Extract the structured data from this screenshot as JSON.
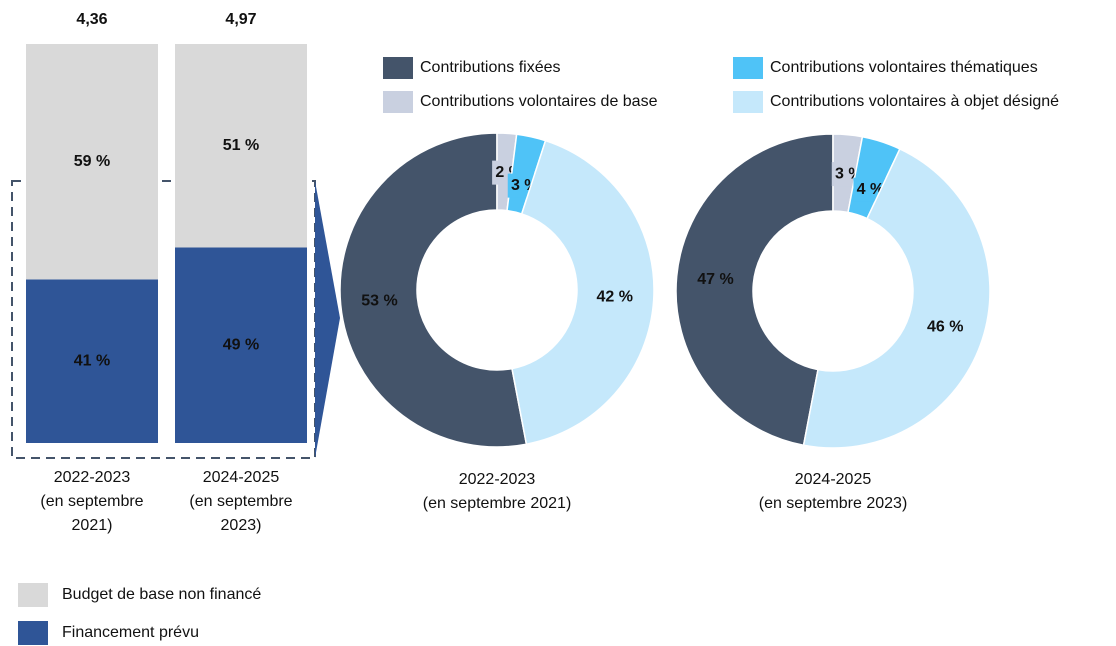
{
  "chart_data": [
    {
      "type": "bar",
      "stacked": true,
      "categories": [
        "2022-2023\n(en septembre\n2021)",
        "2024-2025\n(en septembre\n2023)"
      ],
      "series": [
        {
          "name": "Financement prévu",
          "color": "#2f5597",
          "values": [
            41,
            49
          ],
          "value_labels": [
            "41 %",
            "49 %"
          ]
        },
        {
          "name": "Budget de base non financé",
          "color": "#d9d9d9",
          "values": [
            59,
            51
          ],
          "value_labels": [
            "59 %",
            "51 %"
          ]
        }
      ],
      "totals": [
        {
          "value": 4.36,
          "label": "4,36"
        },
        {
          "value": 4.97,
          "label": "4,97"
        }
      ],
      "ylim": [
        0,
        100
      ]
    },
    {
      "type": "pie",
      "donut": true,
      "subtitle": "2022-2023\n(en septembre 2021)",
      "categories": [
        "Contributions fixées",
        "Contributions volontaires de base",
        "Contributions volontaires thématiques",
        "Contributions volontaires à objet désigné"
      ],
      "colors": [
        "#44546a",
        "#c9d0e0",
        "#4fc3f7",
        "#c5e8fb"
      ],
      "values": [
        53,
        2,
        3,
        42
      ],
      "value_labels": [
        "53 %",
        "2 %",
        "3 %",
        "42 %"
      ]
    },
    {
      "type": "pie",
      "donut": true,
      "subtitle": "2024-2025\n(en septembre 2023)",
      "categories": [
        "Contributions fixées",
        "Contributions volontaires de base",
        "Contributions volontaires thématiques",
        "Contributions volontaires à objet désigné"
      ],
      "colors": [
        "#44546a",
        "#c9d0e0",
        "#4fc3f7",
        "#c5e8fb"
      ],
      "values": [
        47,
        3,
        4,
        46
      ],
      "value_labels": [
        "47 %",
        "3 %",
        "4 %",
        "46 %"
      ]
    }
  ]
}
